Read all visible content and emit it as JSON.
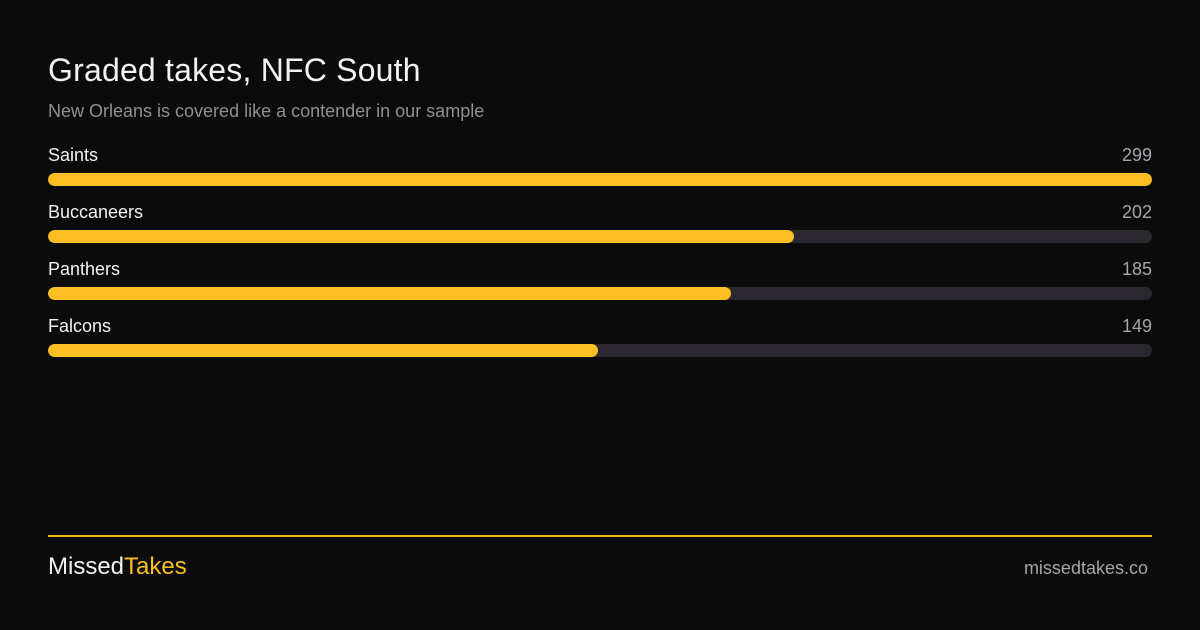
{
  "header": {
    "title": "Graded takes, NFC South",
    "subtitle": "New Orleans is covered like a contender in our sample"
  },
  "chart_data": {
    "type": "bar",
    "orientation": "horizontal",
    "title": "Graded takes, NFC South",
    "subtitle": "New Orleans is covered like a contender in our sample",
    "categories": [
      "Saints",
      "Buccaneers",
      "Panthers",
      "Falcons"
    ],
    "values": [
      299,
      202,
      185,
      149
    ],
    "xlim": [
      0,
      299
    ],
    "grid": false,
    "legend": "none"
  },
  "footer": {
    "brand_part1": "Missed",
    "brand_part2": "Takes",
    "site": "missedtakes.co"
  },
  "colors": {
    "background": "#0b0b0b",
    "accent": "#fbbf24",
    "track": "#2a282e",
    "muted_text": "#8f8f96"
  }
}
